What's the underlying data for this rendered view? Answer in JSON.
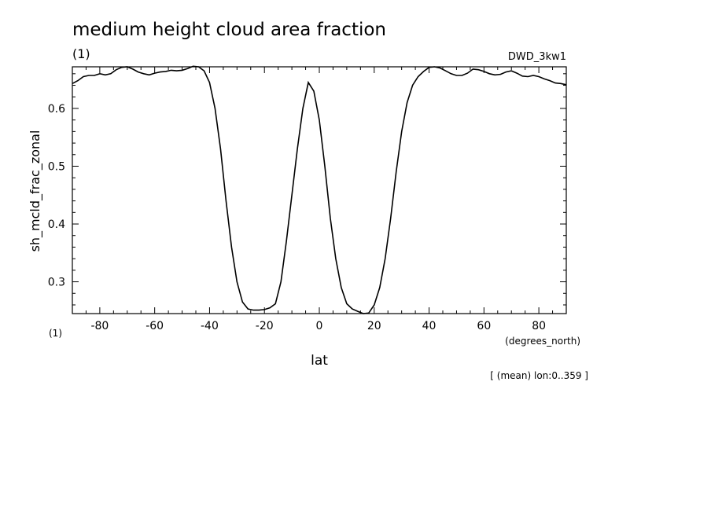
{
  "chart_data": {
    "type": "line",
    "title": "medium height cloud area fraction",
    "units_label": "(1)",
    "dataset_label": "DWD_3kw1",
    "ylabel": "sh_mcld_frac_zonal",
    "y_units_label": "(1)",
    "xlabel": "lat",
    "x_units_label": "(degrees_north)",
    "footnote": "[ (mean) lon:0..359 ]",
    "xlim": [
      -90,
      90
    ],
    "ylim": [
      0.245,
      0.672
    ],
    "x_ticks": [
      -80,
      -60,
      -40,
      -20,
      0,
      20,
      40,
      60,
      80
    ],
    "x_tick_labels": [
      "-80",
      "-60",
      "-40",
      "-20",
      "0",
      "20",
      "40",
      "60",
      "80"
    ],
    "y_ticks": [
      0.3,
      0.4,
      0.5,
      0.6
    ],
    "y_tick_labels": [
      "0.3",
      "0.4",
      "0.5",
      "0.6"
    ],
    "grid": false,
    "series": [
      {
        "x": [
          -90,
          -88,
          -86,
          -84,
          -82,
          -80,
          -78,
          -76,
          -74,
          -72,
          -70,
          -68,
          -66,
          -64,
          -62,
          -60,
          -58,
          -56,
          -54,
          -52,
          -50,
          -48,
          -46,
          -44,
          -42,
          -40,
          -38,
          -36,
          -34,
          -32,
          -30,
          -28,
          -26,
          -24,
          -22,
          -20,
          -18,
          -16,
          -14,
          -12,
          -10,
          -8,
          -6,
          -4,
          -2,
          0,
          2,
          4,
          6,
          8,
          10,
          12,
          14,
          16,
          18,
          20,
          22,
          24,
          26,
          28,
          30,
          32,
          34,
          36,
          38,
          40,
          42,
          44,
          46,
          48,
          50,
          52,
          54,
          56,
          58,
          60,
          62,
          64,
          66,
          68,
          70,
          72,
          74,
          76,
          78,
          80,
          82,
          84,
          86,
          88,
          90
        ],
        "y": [
          0.643,
          0.648,
          0.655,
          0.657,
          0.657,
          0.66,
          0.658,
          0.66,
          0.667,
          0.671,
          0.672,
          0.668,
          0.663,
          0.66,
          0.658,
          0.661,
          0.663,
          0.664,
          0.666,
          0.665,
          0.666,
          0.669,
          0.673,
          0.672,
          0.665,
          0.645,
          0.6,
          0.53,
          0.44,
          0.36,
          0.3,
          0.265,
          0.253,
          0.251,
          0.251,
          0.252,
          0.255,
          0.262,
          0.3,
          0.37,
          0.45,
          0.53,
          0.6,
          0.645,
          0.63,
          0.58,
          0.5,
          0.41,
          0.34,
          0.29,
          0.262,
          0.253,
          0.249,
          0.245,
          0.246,
          0.26,
          0.29,
          0.34,
          0.41,
          0.49,
          0.56,
          0.61,
          0.64,
          0.655,
          0.664,
          0.671,
          0.672,
          0.67,
          0.665,
          0.66,
          0.657,
          0.657,
          0.661,
          0.668,
          0.667,
          0.664,
          0.66,
          0.658,
          0.659,
          0.663,
          0.665,
          0.661,
          0.656,
          0.655,
          0.657,
          0.655,
          0.651,
          0.648,
          0.644,
          0.643,
          0.641
        ]
      }
    ]
  }
}
